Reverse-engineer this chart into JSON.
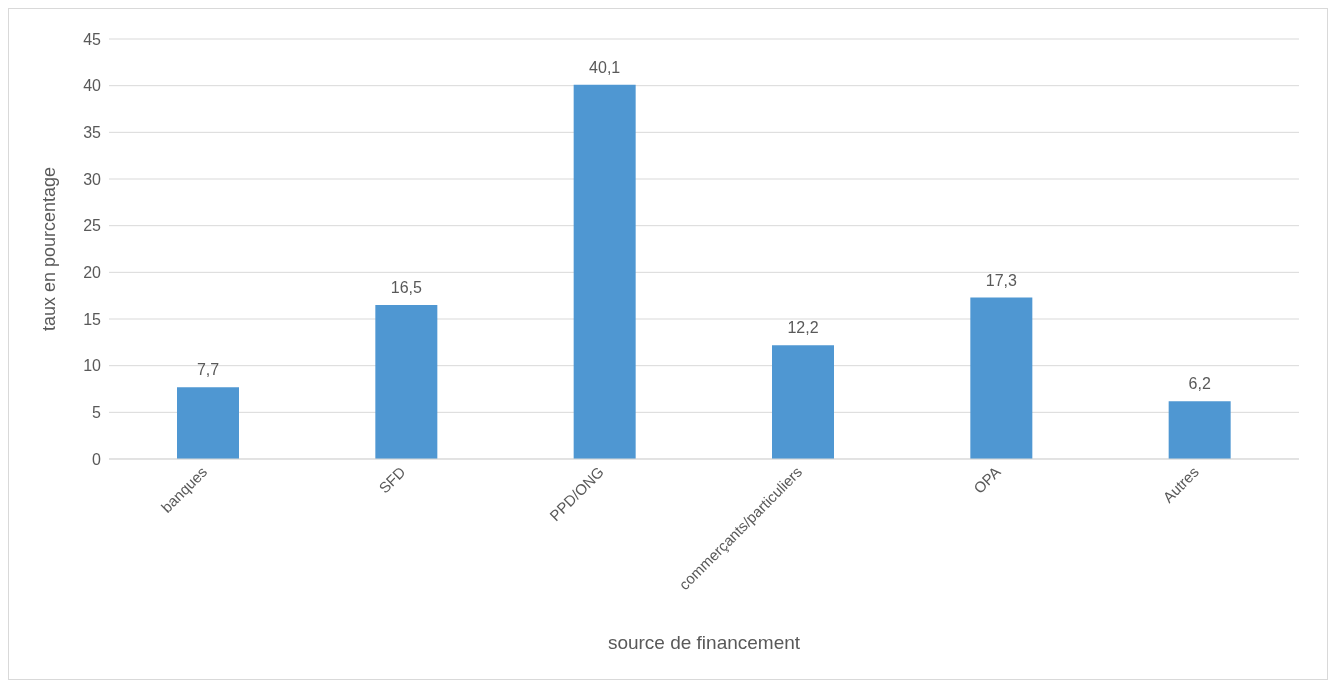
{
  "chart_data": {
    "type": "bar",
    "xlabel": "source de financement",
    "ylabel": "taux en pourcentage",
    "categories": [
      "banques",
      "SFD",
      "PPD/ONG",
      "commerçants/particuliers",
      "OPA",
      "Autres"
    ],
    "values": [
      7.7,
      16.5,
      40.1,
      12.2,
      17.3,
      6.2
    ],
    "value_labels": [
      "7,7",
      "16,5",
      "40,1",
      "12,2",
      "17,3",
      "6,2"
    ],
    "color": "#4f97d2",
    "ylim": [
      0,
      45
    ],
    "yticks": [
      0,
      5,
      10,
      15,
      20,
      25,
      30,
      35,
      40,
      45
    ],
    "grid": "y",
    "legend": false
  }
}
